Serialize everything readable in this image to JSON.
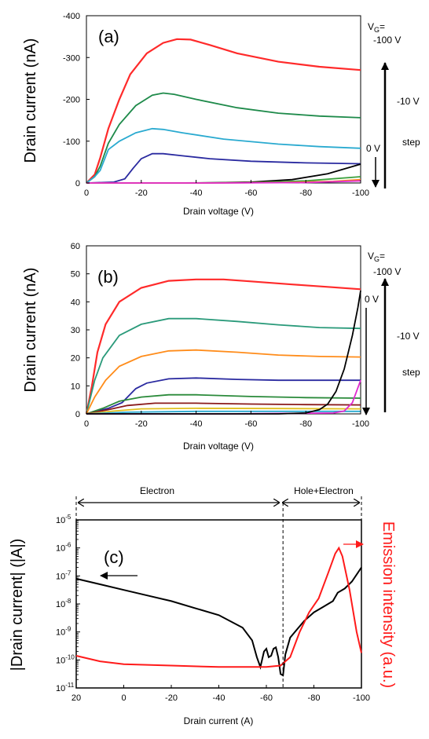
{
  "chart_data": [
    {
      "type": "line",
      "panel_label": "(a)",
      "xlabel": "Drain voltage (V)",
      "ylabel": "Drain current (nA)",
      "xlim": [
        0,
        -100
      ],
      "ylim": [
        0,
        -400
      ],
      "xticks": [
        "0",
        "-20",
        "-40",
        "-60",
        "-80",
        "-100"
      ],
      "yticks": [
        "0",
        "-100",
        "-200",
        "-300",
        "-400"
      ],
      "annotations": {
        "vg_prefix": "V",
        "vg_sub": "G",
        "vg_suffix": "=",
        "vg_value": "-100 V",
        "step_top": "-10 V",
        "step_bottom": "step",
        "zero": "0 V"
      },
      "series": [
        {
          "color": "#ff2a2a",
          "points": [
            [
              0,
              0
            ],
            [
              -3,
              -20
            ],
            [
              -5,
              -60
            ],
            [
              -8,
              -130
            ],
            [
              -12,
              -200
            ],
            [
              -16,
              -260
            ],
            [
              -22,
              -310
            ],
            [
              -28,
              -335
            ],
            [
              -33,
              -344
            ],
            [
              -38,
              -343
            ],
            [
              -45,
              -330
            ],
            [
              -55,
              -310
            ],
            [
              -70,
              -290
            ],
            [
              -85,
              -278
            ],
            [
              -100,
              -270
            ]
          ]
        },
        {
          "color": "#1e8a4a",
          "points": [
            [
              0,
              0
            ],
            [
              -3,
              -15
            ],
            [
              -5,
              -40
            ],
            [
              -8,
              -95
            ],
            [
              -12,
              -140
            ],
            [
              -18,
              -185
            ],
            [
              -24,
              -210
            ],
            [
              -28,
              -215
            ],
            [
              -32,
              -212
            ],
            [
              -40,
              -200
            ],
            [
              -55,
              -180
            ],
            [
              -70,
              -167
            ],
            [
              -85,
              -160
            ],
            [
              -100,
              -156
            ]
          ]
        },
        {
          "color": "#2aaad0",
          "points": [
            [
              0,
              0
            ],
            [
              -3,
              -15
            ],
            [
              -5,
              -30
            ],
            [
              -8,
              -80
            ],
            [
              -12,
              -100
            ],
            [
              -18,
              -120
            ],
            [
              -24,
              -130
            ],
            [
              -28,
              -128
            ],
            [
              -35,
              -120
            ],
            [
              -50,
              -105
            ],
            [
              -70,
              -93
            ],
            [
              -85,
              -87
            ],
            [
              -100,
              -83
            ]
          ]
        },
        {
          "color": "#2a2aa0",
          "points": [
            [
              0,
              0
            ],
            [
              -10,
              -2
            ],
            [
              -14,
              -10
            ],
            [
              -17,
              -35
            ],
            [
              -20,
              -58
            ],
            [
              -24,
              -70
            ],
            [
              -28,
              -70
            ],
            [
              -35,
              -65
            ],
            [
              -45,
              -58
            ],
            [
              -60,
              -52
            ],
            [
              -80,
              -48
            ],
            [
              -100,
              -46
            ]
          ]
        },
        {
          "color": "#000000",
          "points": [
            [
              0,
              0
            ],
            [
              -20,
              0
            ],
            [
              -40,
              0
            ],
            [
              -60,
              -2
            ],
            [
              -75,
              -8
            ],
            [
              -88,
              -22
            ],
            [
              -100,
              -45
            ]
          ]
        },
        {
          "color": "#3ca03c",
          "points": [
            [
              0,
              0
            ],
            [
              -30,
              0
            ],
            [
              -60,
              -1
            ],
            [
              -80,
              -5
            ],
            [
              -100,
              -15
            ]
          ]
        },
        {
          "color": "#ff8c1a",
          "points": [
            [
              0,
              0
            ],
            [
              -40,
              0
            ],
            [
              -70,
              -1
            ],
            [
              -90,
              -4
            ],
            [
              -100,
              -8
            ]
          ]
        },
        {
          "color": "#e02ad0",
          "points": [
            [
              0,
              0
            ],
            [
              -50,
              0
            ],
            [
              -80,
              -1
            ],
            [
              -100,
              -5
            ]
          ]
        }
      ]
    },
    {
      "type": "line",
      "panel_label": "(b)",
      "xlabel": "Drain voltage (V)",
      "ylabel": "Drain current (nA)",
      "xlim": [
        0,
        -100
      ],
      "ylim": [
        0,
        60
      ],
      "xticks": [
        "0",
        "-20",
        "-40",
        "-60",
        "-80",
        "-100"
      ],
      "yticks": [
        "0",
        "10",
        "20",
        "30",
        "40",
        "50",
        "60"
      ],
      "annotations": {
        "vg_prefix": "V",
        "vg_sub": "G",
        "vg_suffix": "=",
        "vg_value": "-100 V",
        "step_top": "-10 V",
        "step_bottom": "step",
        "zero": "0 V"
      },
      "series": [
        {
          "color": "#ff2a2a",
          "points": [
            [
              0,
              0
            ],
            [
              -2,
              10
            ],
            [
              -4,
              22
            ],
            [
              -7,
              32
            ],
            [
              -12,
              40
            ],
            [
              -20,
              45
            ],
            [
              -30,
              47.5
            ],
            [
              -40,
              48
            ],
            [
              -50,
              48
            ],
            [
              -60,
              47.3
            ],
            [
              -75,
              46.2
            ],
            [
              -90,
              45.2
            ],
            [
              -100,
              44.5
            ]
          ]
        },
        {
          "color": "#2a9a7a",
          "points": [
            [
              0,
              0
            ],
            [
              -3,
              12
            ],
            [
              -6,
              20
            ],
            [
              -12,
              28
            ],
            [
              -20,
              32
            ],
            [
              -30,
              34
            ],
            [
              -40,
              34
            ],
            [
              -55,
              33
            ],
            [
              -70,
              31.8
            ],
            [
              -85,
              30.8
            ],
            [
              -100,
              30.5
            ]
          ]
        },
        {
          "color": "#ff8c1a",
          "points": [
            [
              0,
              0
            ],
            [
              -3,
              6
            ],
            [
              -7,
              12
            ],
            [
              -12,
              17
            ],
            [
              -20,
              20.5
            ],
            [
              -30,
              22.5
            ],
            [
              -40,
              22.8
            ],
            [
              -55,
              22
            ],
            [
              -70,
              21
            ],
            [
              -85,
              20.5
            ],
            [
              -100,
              20.3
            ]
          ]
        },
        {
          "color": "#2a2aa0",
          "points": [
            [
              0,
              0
            ],
            [
              -8,
              2
            ],
            [
              -13,
              4
            ],
            [
              -16,
              7
            ],
            [
              -18,
              9
            ],
            [
              -22,
              11
            ],
            [
              -30,
              12.5
            ],
            [
              -40,
              12.8
            ],
            [
              -55,
              12.3
            ],
            [
              -70,
              12
            ],
            [
              -85,
              12
            ],
            [
              -100,
              12
            ]
          ]
        },
        {
          "color": "#2a8a3a",
          "points": [
            [
              0,
              0
            ],
            [
              -6,
              2
            ],
            [
              -12,
              4.5
            ],
            [
              -20,
              6
            ],
            [
              -30,
              6.8
            ],
            [
              -40,
              6.8
            ],
            [
              -60,
              6.2
            ],
            [
              -80,
              5.8
            ],
            [
              -100,
              5.6
            ]
          ]
        },
        {
          "color": "#8a1a1a",
          "points": [
            [
              0,
              0
            ],
            [
              -8,
              1.5
            ],
            [
              -15,
              3
            ],
            [
              -25,
              3.8
            ],
            [
              -40,
              3.8
            ],
            [
              -60,
              3.5
            ],
            [
              -80,
              3.3
            ],
            [
              -100,
              3.2
            ]
          ]
        },
        {
          "color": "#e0c020",
          "points": [
            [
              0,
              0
            ],
            [
              -10,
              1
            ],
            [
              -20,
              1.8
            ],
            [
              -40,
              2
            ],
            [
              -70,
              1.9
            ],
            [
              -100,
              1.8
            ]
          ]
        },
        {
          "color": "#2aaad0",
          "points": [
            [
              0,
              0
            ],
            [
              -15,
              0.6
            ],
            [
              -40,
              0.9
            ],
            [
              -100,
              0.9
            ]
          ]
        },
        {
          "color": "#e02ad0",
          "points": [
            [
              0,
              0
            ],
            [
              -50,
              0
            ],
            [
              -90,
              0.3
            ],
            [
              -94,
              1
            ],
            [
              -97,
              4
            ],
            [
              -100,
              12
            ]
          ]
        },
        {
          "color": "#000000",
          "points": [
            [
              0,
              0
            ],
            [
              -70,
              0
            ],
            [
              -80,
              0.3
            ],
            [
              -85,
              1.5
            ],
            [
              -88,
              3.5
            ],
            [
              -91,
              8
            ],
            [
              -94,
              16
            ],
            [
              -97,
              28
            ],
            [
              -99,
              38
            ],
            [
              -100,
              44
            ]
          ]
        }
      ]
    },
    {
      "type": "line",
      "panel_label": "(c)",
      "xlabel": "Drain current (A)",
      "ylabel": "|Drain current| (|A|)",
      "y2label": "Emission intensity (a.u.)",
      "xlim": [
        20,
        -100
      ],
      "ylim_log10": [
        -11,
        -5
      ],
      "xticks": [
        "20",
        "0",
        "-20",
        "-40",
        "-60",
        "-80",
        "-100"
      ],
      "yticks": [
        {
          "base": "10",
          "exp": "-5"
        },
        {
          "base": "10",
          "exp": "-6"
        },
        {
          "base": "10",
          "exp": "-7"
        },
        {
          "base": "10",
          "exp": "-8"
        },
        {
          "base": "10",
          "exp": "-9"
        },
        {
          "base": "10",
          "exp": "-10"
        },
        {
          "base": "10",
          "exp": "-11"
        }
      ],
      "regions": [
        "Electron",
        "Hole+Electron"
      ],
      "divider_x": -67,
      "series": [
        {
          "color": "#000000",
          "axis": "left",
          "points_log10": [
            [
              20,
              -7.1
            ],
            [
              10,
              -7.3
            ],
            [
              0,
              -7.5
            ],
            [
              -10,
              -7.7
            ],
            [
              -20,
              -7.9
            ],
            [
              -30,
              -8.15
            ],
            [
              -40,
              -8.4
            ],
            [
              -50,
              -8.85
            ],
            [
              -54,
              -9.3
            ],
            [
              -56,
              -9.9
            ],
            [
              -57.5,
              -10.25
            ],
            [
              -59,
              -9.7
            ],
            [
              -60,
              -9.6
            ],
            [
              -61,
              -9.9
            ],
            [
              -62,
              -9.85
            ],
            [
              -63,
              -9.6
            ],
            [
              -64,
              -9.55
            ],
            [
              -65,
              -9.9
            ],
            [
              -66,
              -10.5
            ],
            [
              -67,
              -10.55
            ],
            [
              -68,
              -9.8
            ],
            [
              -70,
              -9.2
            ],
            [
              -73,
              -8.9
            ],
            [
              -76,
              -8.6
            ],
            [
              -80,
              -8.3
            ],
            [
              -84,
              -8.1
            ],
            [
              -88,
              -7.9
            ],
            [
              -90,
              -7.6
            ],
            [
              -93,
              -7.45
            ],
            [
              -96,
              -7.2
            ],
            [
              -100,
              -6.7
            ]
          ]
        },
        {
          "color": "#ff1a1a",
          "axis": "right",
          "points_log10": [
            [
              20,
              -9.85
            ],
            [
              10,
              -10.05
            ],
            [
              0,
              -10.15
            ],
            [
              -20,
              -10.2
            ],
            [
              -40,
              -10.25
            ],
            [
              -60,
              -10.25
            ],
            [
              -66,
              -10.2
            ],
            [
              -70,
              -9.9
            ],
            [
              -74,
              -9.0
            ],
            [
              -78,
              -8.3
            ],
            [
              -82,
              -7.8
            ],
            [
              -86,
              -6.9
            ],
            [
              -89,
              -6.2
            ],
            [
              -90.5,
              -6.0
            ],
            [
              -92,
              -6.3
            ],
            [
              -95,
              -7.5
            ],
            [
              -98,
              -9.0
            ],
            [
              -100,
              -9.75
            ]
          ]
        }
      ]
    }
  ]
}
